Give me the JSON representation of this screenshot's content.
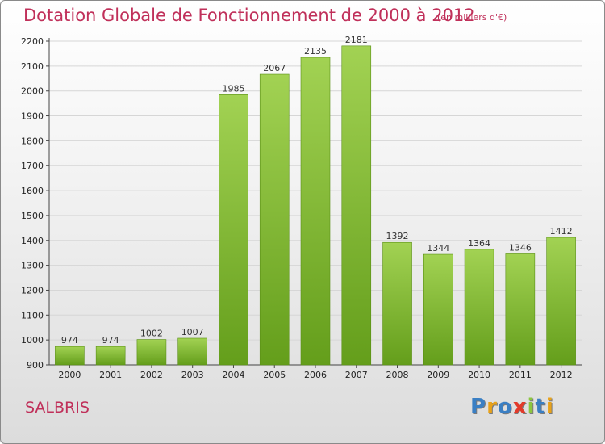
{
  "title": "Dotation Globale de Fonctionnement de 2000 à 2012",
  "subtitle": "(en milliers d'€)",
  "commune": "SALBRIS",
  "logo": {
    "text": "Proxiti",
    "letters": [
      {
        "char": "P",
        "color": "#3a7fc4"
      },
      {
        "char": "r",
        "color": "#e8a21a"
      },
      {
        "char": "o",
        "color": "#3a7fc4"
      },
      {
        "char": "x",
        "color": "#e23a2a"
      },
      {
        "char": "i",
        "color": "#8cc63f"
      },
      {
        "char": "t",
        "color": "#3a7fc4"
      },
      {
        "char": "i",
        "color": "#e8a21a"
      }
    ]
  },
  "colors": {
    "accent": "#c0305a",
    "bar_light": "#a2d253",
    "bar_dark": "#649e1b"
  },
  "chart_data": {
    "type": "bar",
    "title": "Dotation Globale de Fonctionnement de 2000 à 2012",
    "subtitle": "(en milliers d'€)",
    "xlabel": "",
    "ylabel": "",
    "categories": [
      "2000",
      "2001",
      "2002",
      "2003",
      "2004",
      "2005",
      "2006",
      "2007",
      "2008",
      "2009",
      "2010",
      "2011",
      "2012"
    ],
    "values": [
      974,
      974,
      1002,
      1007,
      1985,
      2067,
      2135,
      2181,
      1392,
      1344,
      1364,
      1346,
      1412
    ],
    "ylim": [
      900,
      2200
    ],
    "yticks": [
      900,
      1000,
      1100,
      1200,
      1300,
      1400,
      1500,
      1600,
      1700,
      1800,
      1900,
      2000,
      2100,
      2200
    ],
    "grid": true
  }
}
